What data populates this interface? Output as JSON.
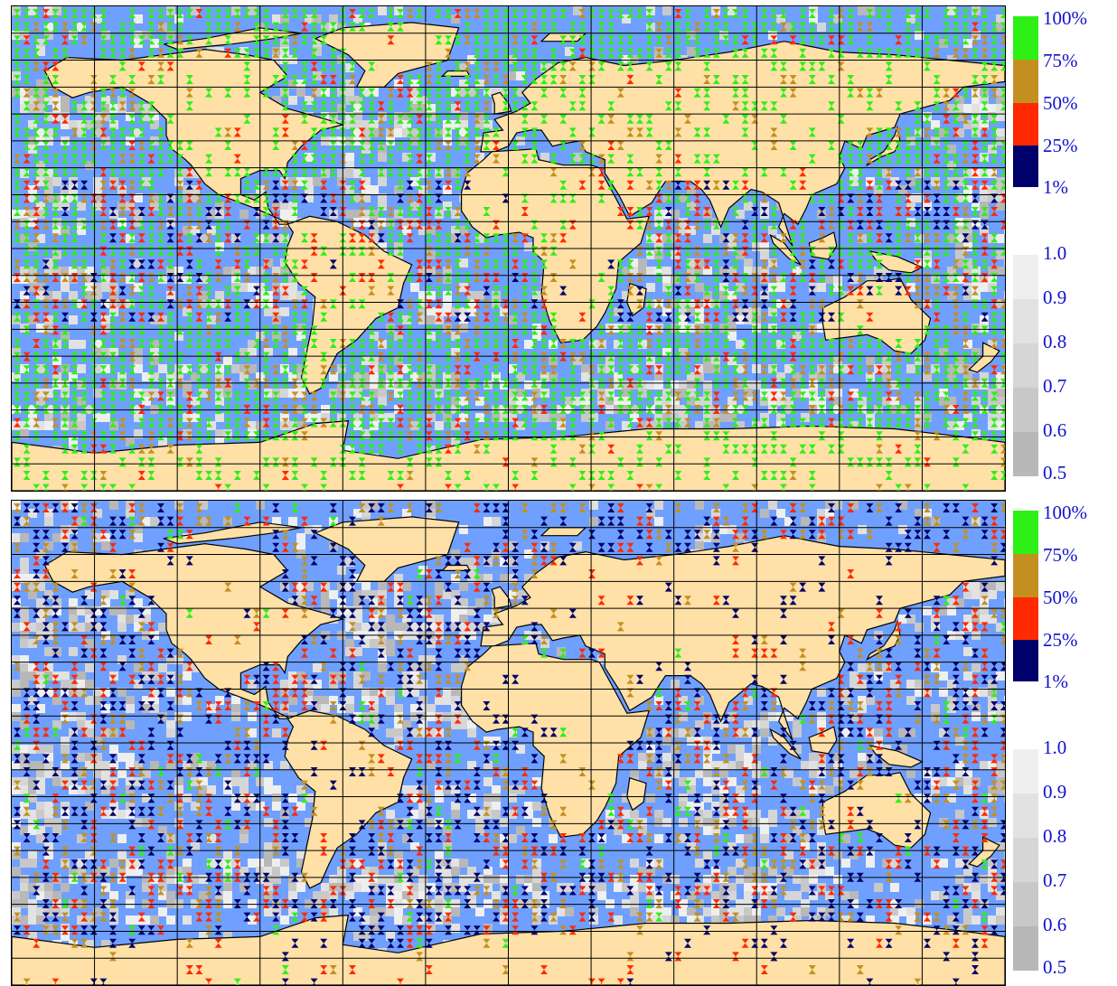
{
  "colors": {
    "ocean": "#6fa0ff",
    "land": "#ffe0a6",
    "coast": "#000000",
    "grid": "#000000",
    "label": "#1010cc",
    "pct_bins": [
      "#00006a",
      "#ff2a00",
      "#c39020",
      "#2eef16"
    ],
    "gray_bins": [
      "#b8b8b8",
      "#c8c8c8",
      "#d6d6d6",
      "#e2e2e2",
      "#efefef"
    ]
  },
  "panels": [
    {
      "id": "top",
      "frequency_legend": {
        "labels": [
          "100%",
          "75%",
          "50%",
          "25%",
          "1%"
        ]
      },
      "value_legend": {
        "labels": [
          "1.0",
          "0.9",
          "0.8",
          "0.7",
          "0.6",
          "0.5"
        ]
      },
      "marker_density": "dense"
    },
    {
      "id": "bottom",
      "frequency_legend": {
        "labels": [
          "100%",
          "75%",
          "50%",
          "25%",
          "1%"
        ]
      },
      "value_legend": {
        "labels": [
          "1.0",
          "0.9",
          "0.8",
          "0.7",
          "0.6",
          "0.5"
        ]
      },
      "marker_density": "sparse"
    }
  ]
}
